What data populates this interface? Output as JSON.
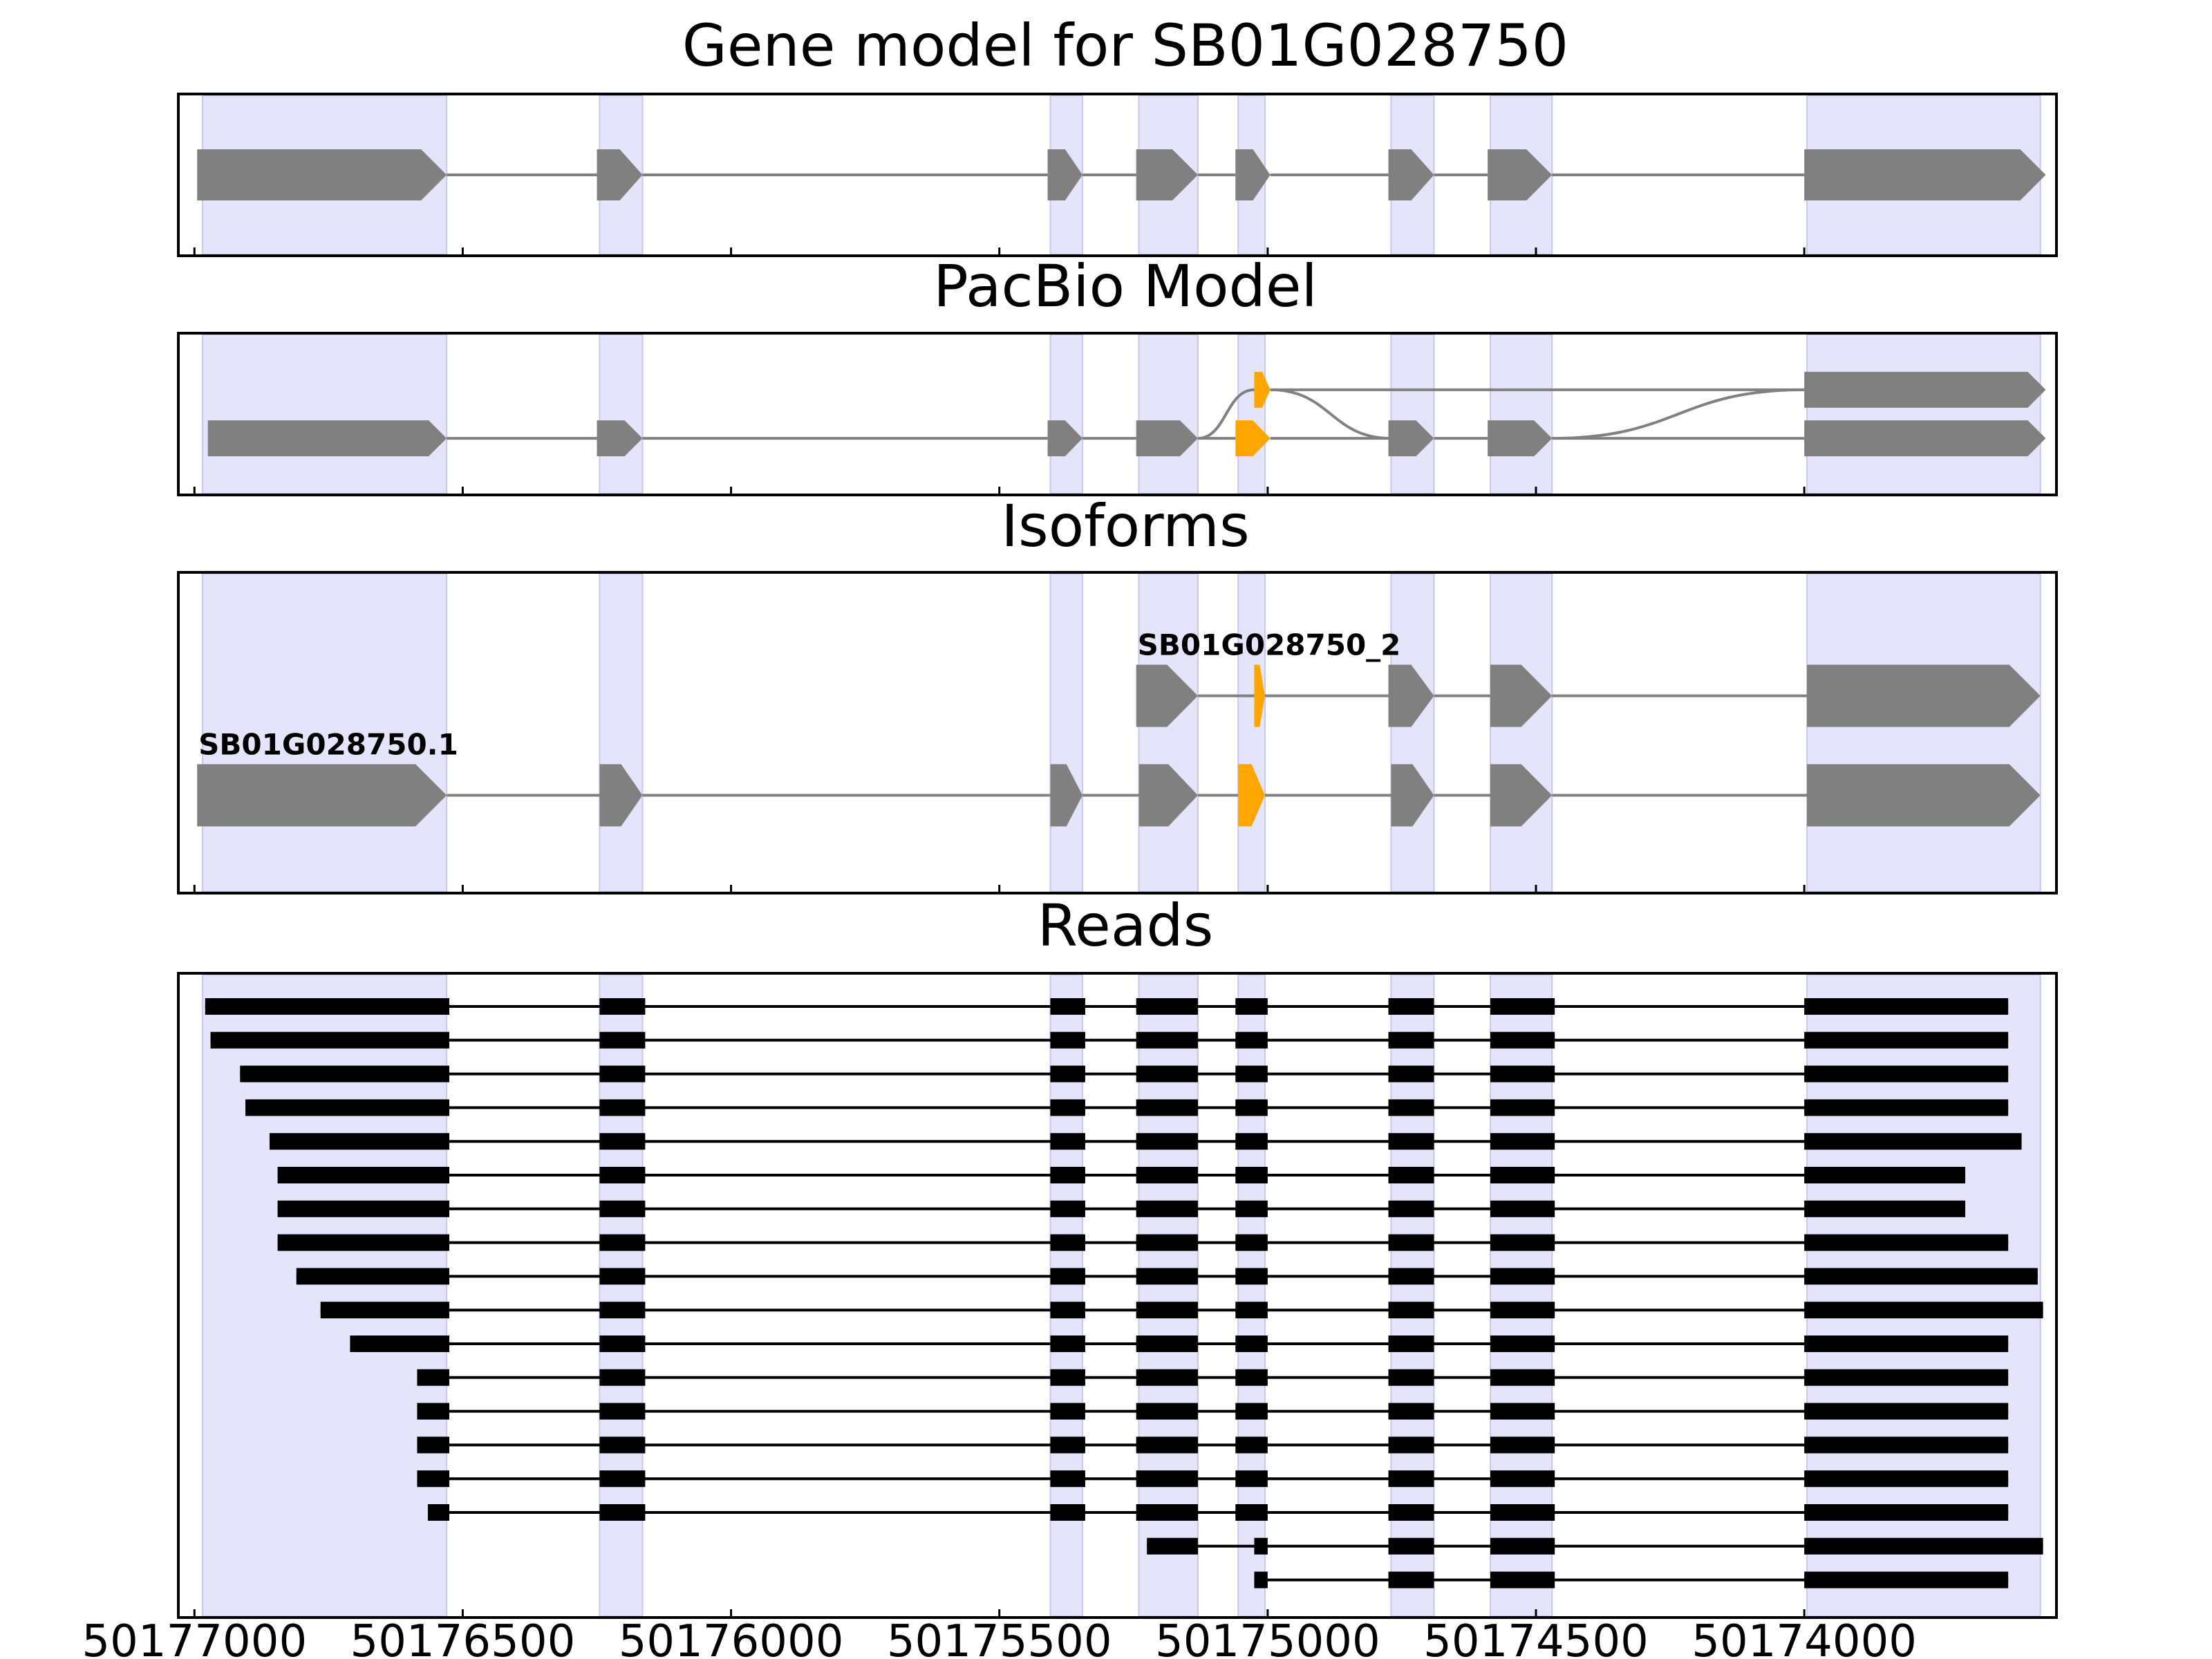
{
  "chart_data": {
    "type": "gene_structure",
    "x_axis": {
      "reversed": true,
      "range": [
        50177030,
        50173530
      ],
      "ticks": [
        50177000,
        50176500,
        50176000,
        50175500,
        50175000,
        50174500,
        50174000
      ],
      "tick_labels": [
        "50177000",
        "50176500",
        "50176000",
        "50175500",
        "50175000",
        "50174500",
        "50174000"
      ]
    },
    "shaded_exons": [
      [
        50176985,
        50176530
      ],
      [
        50176245,
        50176165
      ],
      [
        50175405,
        50175345
      ],
      [
        50175240,
        50175130
      ],
      [
        50175055,
        50175005
      ],
      [
        50174770,
        50174690
      ],
      [
        50174585,
        50174470
      ],
      [
        50173995,
        50173560
      ]
    ],
    "colors": {
      "exon": "#808080",
      "highlight": "#ffa500",
      "shade": "#e4e4fb",
      "shade_border": "#c6c8ee",
      "read": "#000000",
      "line": "#808080"
    },
    "panels": [
      {
        "title": "Gene model for SB01G028750",
        "tracks": [
          {
            "label": "",
            "row": 0.5,
            "exons": [
              [
                50176995,
                50176530,
                "grey"
              ],
              [
                50176250,
                50176165,
                "grey"
              ],
              [
                50175410,
                50175345,
                "grey"
              ],
              [
                50175245,
                50175130,
                "grey"
              ],
              [
                50175060,
                50174995,
                "grey"
              ],
              [
                50174775,
                50174690,
                "grey"
              ],
              [
                50174590,
                50174470,
                "grey"
              ],
              [
                50174000,
                50173550,
                "grey"
              ]
            ]
          }
        ]
      },
      {
        "title": "PacBio Model",
        "tracks": [
          {
            "label": "",
            "row": 0.35,
            "exons": [
              [
                50175025,
                50174995,
                "orange"
              ],
              [
                50174000,
                50173550,
                "grey"
              ]
            ],
            "links": [
              [
                50175130,
                50175025
              ],
              [
                50174995,
                50174770
              ],
              [
                50174470,
                50174000
              ]
            ]
          },
          {
            "label": "",
            "row": 0.65,
            "exons": [
              [
                50176975,
                50176530,
                "grey"
              ],
              [
                50176250,
                50176165,
                "grey"
              ],
              [
                50175410,
                50175345,
                "grey"
              ],
              [
                50175245,
                50175130,
                "grey"
              ],
              [
                50175060,
                50174995,
                "orange"
              ],
              [
                50174775,
                50174690,
                "grey"
              ],
              [
                50174590,
                50174470,
                "grey"
              ],
              [
                50174000,
                50173550,
                "grey"
              ]
            ]
          }
        ]
      },
      {
        "title": "Isoforms",
        "tracks": [
          {
            "label": "SB01G028750_2",
            "row": 0.385,
            "exons": [
              [
                50175245,
                50175130,
                "grey"
              ],
              [
                50175025,
                50175005,
                "orange"
              ],
              [
                50174775,
                50174690,
                "grey"
              ],
              [
                50174585,
                50174470,
                "grey"
              ],
              [
                50173995,
                50173560,
                "grey"
              ]
            ]
          },
          {
            "label": "SB01G028750.1",
            "row": 0.695,
            "exons": [
              [
                50176995,
                50176530,
                "grey"
              ],
              [
                50176245,
                50176165,
                "grey"
              ],
              [
                50175405,
                50175345,
                "grey"
              ],
              [
                50175240,
                50175130,
                "grey"
              ],
              [
                50175055,
                50175005,
                "orange"
              ],
              [
                50174770,
                50174690,
                "grey"
              ],
              [
                50174585,
                50174470,
                "grey"
              ],
              [
                50173995,
                50173560,
                "grey"
              ]
            ]
          }
        ]
      }
    ],
    "reads_panel": {
      "title": "Reads",
      "middle_blocks": [
        [
          50176245,
          50176160
        ],
        [
          50175405,
          50175340
        ],
        [
          50175245,
          50175130
        ],
        [
          50175060,
          50175000
        ],
        [
          50174775,
          50174690
        ],
        [
          50174585,
          50174465
        ],
        [
          50174000,
          50173620
        ]
      ],
      "reads": [
        {
          "start": 50176980,
          "end": 50173620
        },
        {
          "start": 50176970,
          "end": 50173620
        },
        {
          "start": 50176915,
          "end": 50173620
        },
        {
          "start": 50176905,
          "end": 50173620
        },
        {
          "start": 50176860,
          "end": 50173595
        },
        {
          "start": 50176845,
          "end": 50173700
        },
        {
          "start": 50176845,
          "end": 50173700
        },
        {
          "start": 50176845,
          "end": 50173620
        },
        {
          "start": 50176810,
          "end": 50173565
        },
        {
          "start": 50176765,
          "end": 50173555
        },
        {
          "start": 50176710,
          "end": 50173620
        },
        {
          "start": 50176585,
          "end": 50173620
        },
        {
          "start": 50176585,
          "end": 50173620
        },
        {
          "start": 50176585,
          "end": 50173620
        },
        {
          "start": 50176585,
          "end": 50173620
        },
        {
          "start": 50176565,
          "end": 50173620
        },
        {
          "blocks": [
            [
              50175225,
              50175130
            ],
            [
              50175025,
              50175000
            ],
            [
              50174775,
              50174690
            ],
            [
              50174585,
              50174465
            ],
            [
              50174000,
              50173555
            ]
          ]
        },
        {
          "blocks": [
            [
              50175025,
              50175000
            ],
            [
              50174775,
              50174690
            ],
            [
              50174585,
              50174465
            ],
            [
              50174000,
              50173620
            ]
          ]
        }
      ]
    }
  }
}
